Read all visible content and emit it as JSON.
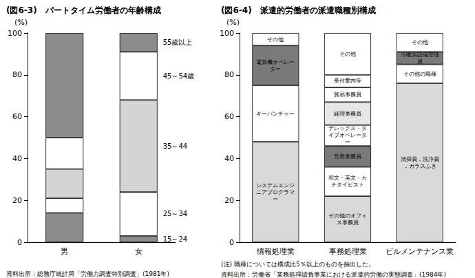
{
  "chart_data": [
    {
      "type": "bar",
      "title": "(図6-3)　パートタイム労働者の年齢構成",
      "ylabel": "(%)",
      "source": "資料出所：総務庁統計局「労働力調査特別調査」(1981年)",
      "categories": [
        "男",
        "女"
      ],
      "stacked": true,
      "grid": false,
      "ylim": [
        0,
        100
      ],
      "yticks": [
        0,
        20,
        40,
        60,
        80,
        100
      ],
      "series": [
        {
          "name": "15～24",
          "color": "#8c8c8c",
          "values": [
            14,
            3
          ]
        },
        {
          "name": "25～34",
          "color": "#ffffff",
          "values": [
            7,
            21
          ]
        },
        {
          "name": "35～44",
          "color": "#d4d4d4",
          "values": [
            14,
            44
          ]
        },
        {
          "name": "45～54歳",
          "color": "#ffffff",
          "values": [
            15,
            23
          ]
        },
        {
          "name": "55歳以上",
          "color": "#8c8c8c",
          "values": [
            50,
            9
          ]
        }
      ]
    },
    {
      "type": "bar",
      "title": "(図6-4)　派遣的労働者の派遣職種別構成",
      "ylabel": "(%)",
      "note": "(注) 職種については構成比5％以上のものを抽出した。",
      "source": "資料出所：労働省「業務処理請負事業における派遣的労働の実態調査」(1984年)",
      "categories": [
        "情報処理業",
        "事務処理業",
        "ビルメンテナンス業"
      ],
      "stacked": true,
      "grid": false,
      "ylim": [
        0,
        100
      ],
      "yticks": [
        0,
        20,
        40,
        60,
        80,
        100
      ],
      "series": [
        {
          "name": "システムエンジニアプログラマー",
          "color": "#d9d9d9",
          "values": [
            48,
            null,
            null
          ]
        },
        {
          "name": "キーパンチャー",
          "color": "#ffffff",
          "values": [
            27,
            null,
            null
          ]
        },
        {
          "name": "電算機オペレーター",
          "color": "#7a7a7a",
          "values": [
            19,
            null,
            null
          ]
        },
        {
          "name": "その他",
          "color": "#ffffff",
          "values": [
            6,
            null,
            null
          ]
        },
        {
          "name": "その他のオフィス事務員",
          "color": "#d9d9d9",
          "values": [
            null,
            22,
            null
          ]
        },
        {
          "name": "和文・英文・カナタイピスト",
          "color": "#ffffff",
          "values": [
            null,
            14,
            null
          ]
        },
        {
          "name": "営業事務員",
          "color": "#7a7a7a",
          "values": [
            null,
            10,
            null
          ]
        },
        {
          "name": "テレックス・タイプオペレーター",
          "color": "#ffffff",
          "values": [
            null,
            10,
            null
          ]
        },
        {
          "name": "経理事務員",
          "color": "#e6e6e6",
          "values": [
            null,
            11,
            null
          ]
        },
        {
          "name": "貿易事務員",
          "color": "#ffffff",
          "values": [
            null,
            7,
            null
          ]
        },
        {
          "name": "受付案内等",
          "color": "#ffffff",
          "values": [
            null,
            6,
            null
          ]
        },
        {
          "name": "その他",
          "color": "#ffffff",
          "values": [
            null,
            20,
            null
          ]
        },
        {
          "name": "清掃員，洗浄員，ガラスふき",
          "color": "#d9d9d9",
          "values": [
            null,
            null,
            76
          ]
        },
        {
          "name": "その他の職種",
          "color": "#ffffff",
          "values": [
            null,
            null,
            9
          ]
        },
        {
          "name": "冷暖房設備管理員",
          "color": "#7a7a7a",
          "values": [
            null,
            null,
            6
          ]
        },
        {
          "name": "その他",
          "color": "#ffffff",
          "values": [
            null,
            null,
            9
          ]
        }
      ]
    }
  ]
}
